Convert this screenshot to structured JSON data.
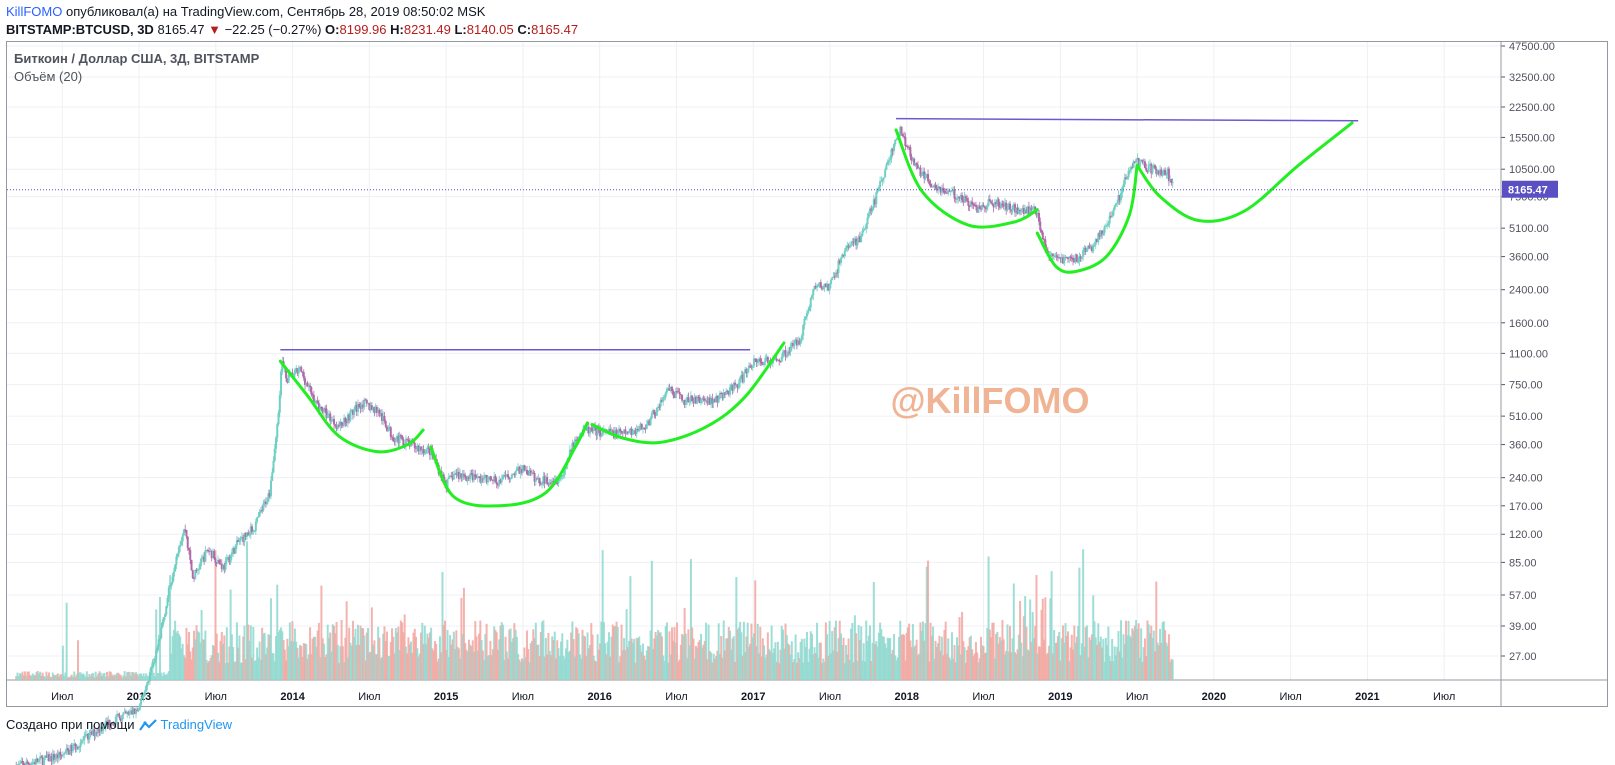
{
  "header": {
    "author": "KillFOMO",
    "published_text": "опубликовал(а) на TradingView.com, Сентябрь 28, 2019 08:50:02 MSK",
    "symbol": "BITSTAMP:BTCUSD, 3D",
    "last": "8165.47",
    "change": "−22.25 (−0.27%)",
    "o_label": "O:",
    "o": "8199.96",
    "h_label": "H:",
    "h": "8231.49",
    "l_label": "L:",
    "l": "8140.05",
    "c_label": "C:",
    "c": "8165.47"
  },
  "legend": {
    "title": "Биткоин / Доллар США, 3Д, BITSTAMP",
    "volume": "Объём (20)"
  },
  "watermark": "@KillFOMO",
  "footer": {
    "text": "Создано при помощи",
    "brand": "TradingView"
  },
  "colors": {
    "up": "#6fcfc3",
    "down": "#b06aa8",
    "vol_up": "#8ed8cf",
    "vol_down": "#f2a6a0",
    "trend_line": "#6a5acd",
    "curve": "#22ee22",
    "price_line": "#5b4fc4",
    "price_label_bg": "#5b4fc4",
    "watermark": "#f0b494"
  },
  "chart_data": {
    "type": "candlestick",
    "title": "Биткоин / Доллар США, 3Д, BITSTAMP",
    "y_scale": "log",
    "y_ticks": [
      "47500.00",
      "32500.00",
      "22500.00",
      "15500.00",
      "10500.00",
      "7500.00",
      "5100.00",
      "3600.00",
      "2400.00",
      "1600.00",
      "1100.00",
      "750.00",
      "510.00",
      "360.00",
      "240.00",
      "170.00",
      "120.00",
      "85.00",
      "57.00",
      "39.00",
      "27.00"
    ],
    "volume_ticks": [
      "27.00",
      "39.00",
      "57.00"
    ],
    "x_ticks": [
      "Июл",
      "2013",
      "Июл",
      "2014",
      "Июл",
      "2015",
      "Июл",
      "2016",
      "Июл",
      "2017",
      "Июл",
      "2018",
      "Июл",
      "2019",
      "Июл",
      "2020",
      "Июл",
      "2021",
      "Июл"
    ],
    "x_tick_values": [
      2012.5,
      2013,
      2013.5,
      2014,
      2014.5,
      2015,
      2015.5,
      2016,
      2016.5,
      2017,
      2017.5,
      2018,
      2018.5,
      2019,
      2019.5,
      2020,
      2020.5,
      2021,
      2021.5
    ],
    "last_price": "8165.47",
    "price_path": [
      [
        2012.2,
        7
      ],
      [
        2012.5,
        8
      ],
      [
        2012.8,
        12
      ],
      [
        2013.0,
        14
      ],
      [
        2013.12,
        30
      ],
      [
        2013.25,
        100
      ],
      [
        2013.3,
        130
      ],
      [
        2013.35,
        70
      ],
      [
        2013.45,
        100
      ],
      [
        2013.55,
        80
      ],
      [
        2013.65,
        110
      ],
      [
        2013.75,
        130
      ],
      [
        2013.85,
        200
      ],
      [
        2013.9,
        450
      ],
      [
        2013.93,
        1000
      ],
      [
        2013.96,
        800
      ],
      [
        2014.05,
        900
      ],
      [
        2014.15,
        600
      ],
      [
        2014.3,
        450
      ],
      [
        2014.45,
        600
      ],
      [
        2014.55,
        550
      ],
      [
        2014.65,
        400
      ],
      [
        2014.8,
        350
      ],
      [
        2014.9,
        330
      ],
      [
        2015.0,
        220
      ],
      [
        2015.05,
        250
      ],
      [
        2015.2,
        240
      ],
      [
        2015.35,
        230
      ],
      [
        2015.5,
        270
      ],
      [
        2015.6,
        230
      ],
      [
        2015.75,
        240
      ],
      [
        2015.85,
        400
      ],
      [
        2015.9,
        430
      ],
      [
        2016.0,
        420
      ],
      [
        2016.15,
        410
      ],
      [
        2016.3,
        450
      ],
      [
        2016.45,
        700
      ],
      [
        2016.55,
        620
      ],
      [
        2016.75,
        620
      ],
      [
        2016.9,
        750
      ],
      [
        2017.0,
        1000
      ],
      [
        2017.15,
        1000
      ],
      [
        2017.3,
        1300
      ],
      [
        2017.4,
        2500
      ],
      [
        2017.5,
        2500
      ],
      [
        2017.6,
        4000
      ],
      [
        2017.7,
        4500
      ],
      [
        2017.8,
        7500
      ],
      [
        2017.9,
        13000
      ],
      [
        2017.96,
        17000
      ],
      [
        2018.05,
        11000
      ],
      [
        2018.15,
        9000
      ],
      [
        2018.25,
        8000
      ],
      [
        2018.35,
        7500
      ],
      [
        2018.45,
        6500
      ],
      [
        2018.55,
        7000
      ],
      [
        2018.7,
        6500
      ],
      [
        2018.85,
        6300
      ],
      [
        2018.9,
        4000
      ],
      [
        2018.95,
        3500
      ],
      [
        2019.1,
        3500
      ],
      [
        2019.2,
        4000
      ],
      [
        2019.3,
        5200
      ],
      [
        2019.4,
        8000
      ],
      [
        2019.45,
        11000
      ],
      [
        2019.5,
        11500
      ],
      [
        2019.6,
        10500
      ],
      [
        2019.7,
        10000
      ],
      [
        2019.74,
        8165
      ]
    ],
    "annotations": {
      "resistance_lines": [
        {
          "from": [
            2013.92,
            1150
          ],
          "to": [
            2016.98,
            1150
          ]
        },
        {
          "from": [
            2017.93,
            19500
          ],
          "to": [
            2020.94,
            19000
          ]
        }
      ],
      "cup_curves": [
        {
          "points": [
            [
              2013.92,
              1000
            ],
            [
              2014.1,
              650
            ],
            [
              2014.3,
              400
            ],
            [
              2014.55,
              330
            ],
            [
              2014.75,
              360
            ],
            [
              2014.85,
              430
            ]
          ]
        },
        {
          "points": [
            [
              2014.9,
              350
            ],
            [
              2015.05,
              190
            ],
            [
              2015.35,
              170
            ],
            [
              2015.65,
              200
            ],
            [
              2015.85,
              360
            ],
            [
              2015.92,
              470
            ]
          ]
        },
        {
          "points": [
            [
              2015.95,
              460
            ],
            [
              2016.15,
              390
            ],
            [
              2016.4,
              370
            ],
            [
              2016.7,
              450
            ],
            [
              2016.95,
              650
            ],
            [
              2017.2,
              1250
            ]
          ]
        },
        {
          "points": [
            [
              2017.93,
              17000
            ],
            [
              2018.1,
              8000
            ],
            [
              2018.4,
              5300
            ],
            [
              2018.7,
              5500
            ],
            [
              2018.85,
              6400
            ]
          ]
        },
        {
          "points": [
            [
              2018.85,
              4800
            ],
            [
              2018.97,
              3200
            ],
            [
              2019.1,
              3000
            ],
            [
              2019.3,
              3600
            ],
            [
              2019.45,
              6000
            ],
            [
              2019.5,
              11000
            ]
          ]
        },
        {
          "points": [
            [
              2019.5,
              11000
            ],
            [
              2019.65,
              7500
            ],
            [
              2019.9,
              5600
            ],
            [
              2020.2,
              6300
            ],
            [
              2020.55,
              11000
            ],
            [
              2020.9,
              18500
            ]
          ]
        }
      ]
    }
  }
}
